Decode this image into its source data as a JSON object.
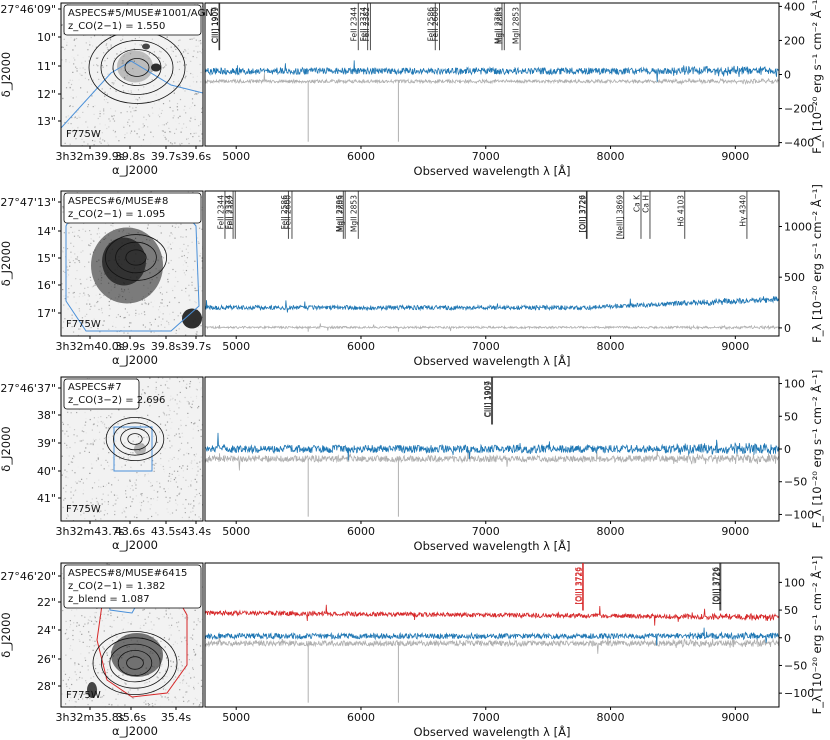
{
  "chart_data": [
    {
      "type": "line",
      "panel_id": "ASPECS#5",
      "thumbnail": {
        "dec_ticks": [
          "-27°46'09\"",
          "10\"",
          "11\"",
          "12\"",
          "13\""
        ],
        "ra_ticks": [
          "3h32m39.9s",
          "39.8s",
          "39.7s",
          "39.6s"
        ],
        "xlabel": "α_J2000",
        "ylabel": "δ_J2000",
        "filter": "F775W",
        "box_lines": [
          "ASPECS#5/MUSE#1001/AGN",
          "z_CO(2−1) = 1.550"
        ]
      },
      "spectrum": {
        "x_ticks": [
          5000,
          6000,
          7000,
          8000,
          9000
        ],
        "y_ticks": [
          -400,
          -200,
          0,
          200,
          400
        ],
        "ylim": [
          -420,
          420
        ],
        "xlim": [
          4750,
          9350
        ],
        "xlabel": "Observed wavelength λ [Å]",
        "ylabel": "F_λ [10⁻²⁰ erg s⁻¹ cm⁻² Å⁻¹]",
        "flux_level": 20,
        "flux_noise": 20,
        "sky_level": -40,
        "sky_noise": 10,
        "lines": [
          {
            "label": "CIII] 1907",
            "wave": 4862,
            "color": "#222222"
          },
          {
            "label": "CIII] 1909",
            "wave": 4868,
            "color": "#222222"
          },
          {
            "label": "FeII 2344",
            "wave": 5978,
            "color": "#222222"
          },
          {
            "label": "FeII 2374",
            "wave": 6054,
            "color": "#222222"
          },
          {
            "label": "FeII 2382",
            "wave": 6075,
            "color": "#222222"
          },
          {
            "label": "FeII 2586",
            "wave": 6595,
            "color": "#222222"
          },
          {
            "label": "FeII 2600",
            "wave": 6630,
            "color": "#222222"
          },
          {
            "label": "MgII 2796",
            "wave": 7130,
            "color": "#222222"
          },
          {
            "label": "MgII 2803",
            "wave": 7148,
            "color": "#222222"
          },
          {
            "label": "MgII 2853",
            "wave": 7275,
            "color": "#222222"
          }
        ]
      }
    },
    {
      "type": "line",
      "panel_id": "ASPECS#6",
      "thumbnail": {
        "dec_ticks": [
          "-27°47'13\"",
          "14\"",
          "15\"",
          "16\"",
          "17\""
        ],
        "ra_ticks": [
          "3h32m40.0s",
          "39.9s",
          "39.8s",
          "39.7s"
        ],
        "xlabel": "α_J2000",
        "ylabel": "δ_J2000",
        "filter": "F775W",
        "box_lines": [
          "ASPECS#6/MUSE#8",
          "z_CO(2−1) = 1.095"
        ]
      },
      "spectrum": {
        "x_ticks": [
          5000,
          6000,
          7000,
          8000,
          9000
        ],
        "y_ticks": [
          0,
          500,
          1000
        ],
        "ylim": [
          -80,
          1350
        ],
        "xlim": [
          4750,
          9350
        ],
        "xlabel": "Observed wavelength λ [Å]",
        "ylabel": "F_λ [10⁻²⁰ erg s⁻¹ cm⁻² Å⁻¹]",
        "flux_level": 200,
        "flux_noise": 22,
        "sky_level": 5,
        "sky_noise": 10,
        "lines": [
          {
            "label": "FeII 2344",
            "wave": 4910,
            "color": "#222222"
          },
          {
            "label": "FeII 2374",
            "wave": 4975,
            "color": "#222222"
          },
          {
            "label": "FeII 2382",
            "wave": 4992,
            "color": "#222222"
          },
          {
            "label": "FeII 2586",
            "wave": 5418,
            "color": "#222222"
          },
          {
            "label": "FeII 2600",
            "wave": 5447,
            "color": "#222222"
          },
          {
            "label": "MgII 2796",
            "wave": 5858,
            "color": "#222222"
          },
          {
            "label": "MgII 2803",
            "wave": 5873,
            "color": "#222222"
          },
          {
            "label": "MgII 2853",
            "wave": 5978,
            "color": "#222222"
          },
          {
            "label": "[OII] 3726",
            "wave": 7806,
            "color": "#222222"
          },
          {
            "label": "[OII] 3729",
            "wave": 7812,
            "color": "#222222"
          },
          {
            "label": "[NeIII] 3869",
            "wave": 8106,
            "color": "#222222"
          },
          {
            "label": "Ca K",
            "wave": 8244,
            "color": "#222222"
          },
          {
            "label": "Ca H",
            "wave": 8316,
            "color": "#222222"
          },
          {
            "label": "Hδ 4103",
            "wave": 8595,
            "color": "#222222"
          },
          {
            "label": "Hγ 4340",
            "wave": 9093,
            "color": "#222222"
          }
        ]
      }
    },
    {
      "type": "line",
      "panel_id": "ASPECS#7",
      "thumbnail": {
        "dec_ticks": [
          "-27°46'37\"",
          "38\"",
          "39\"",
          "40\"",
          "41\""
        ],
        "ra_ticks": [
          "3h32m43.7s",
          "43.6s",
          "43.5s",
          "43.4s"
        ],
        "xlabel": "α_J2000",
        "ylabel": "δ_J2000",
        "filter": "F775W",
        "box_lines": [
          "ASPECS#7",
          "z_CO(3−2) = 2.696"
        ]
      },
      "spectrum": {
        "x_ticks": [
          5000,
          6000,
          7000,
          8000,
          9000
        ],
        "y_ticks": [
          -100,
          -50,
          0,
          50,
          100
        ],
        "ylim": [
          -110,
          110
        ],
        "xlim": [
          4750,
          9350
        ],
        "xlabel": "Observed wavelength λ [Å]",
        "ylabel": "F_λ [10⁻²⁰ erg s⁻¹ cm⁻² Å⁻¹]",
        "flux_level": 0,
        "flux_noise": 6,
        "sky_level": -15,
        "sky_noise": 5,
        "lines": [
          {
            "label": "CIII] 1907",
            "wave": 7047,
            "color": "#222222"
          },
          {
            "label": "CIII] 1909",
            "wave": 7055,
            "color": "#222222"
          }
        ]
      }
    },
    {
      "type": "line",
      "panel_id": "ASPECS#8",
      "thumbnail": {
        "dec_ticks": [
          "-27°46'20\"",
          "22\"",
          "24\"",
          "26\"",
          "28\""
        ],
        "ra_ticks": [
          "3h32m35.8s",
          "35.6s",
          "35.4s"
        ],
        "xlabel": "α_J2000",
        "ylabel": "δ_J2000",
        "filter": "F775W",
        "box_lines": [
          "ASPECS#8/MUSE#6415",
          "z_CO(2−1) = 1.382",
          "z_blend = 1.087"
        ]
      },
      "spectrum": {
        "x_ticks": [
          5000,
          6000,
          7000,
          8000,
          9000
        ],
        "y_ticks": [
          -100,
          -50,
          0,
          50,
          100
        ],
        "ylim": [
          -125,
          135
        ],
        "xlim": [
          4750,
          9350
        ],
        "xlabel": "Observed wavelength λ [Å]",
        "ylabel": "F_λ [10⁻²⁰ erg s⁻¹ cm⁻² Å⁻¹]",
        "flux_level": 3,
        "flux_noise": 5,
        "sky_level": -10,
        "sky_noise": 5,
        "blend_level": 45,
        "blend_noise": 4,
        "lines": [
          {
            "label": "[OII] 3726",
            "wave": 7775,
            "color": "#d62728"
          },
          {
            "label": "[OII] 3729",
            "wave": 7782,
            "color": "#d62728"
          },
          {
            "label": "[OII] 3726",
            "wave": 8876,
            "color": "#222222"
          },
          {
            "label": "[OII] 3729",
            "wave": 8884,
            "color": "#222222"
          }
        ]
      }
    }
  ],
  "colors": {
    "spectrum": "#1f77b4",
    "sky": "#b0b0b0",
    "blend": "#d62728",
    "contour": "#111111",
    "aperture": "#4a90d9"
  }
}
